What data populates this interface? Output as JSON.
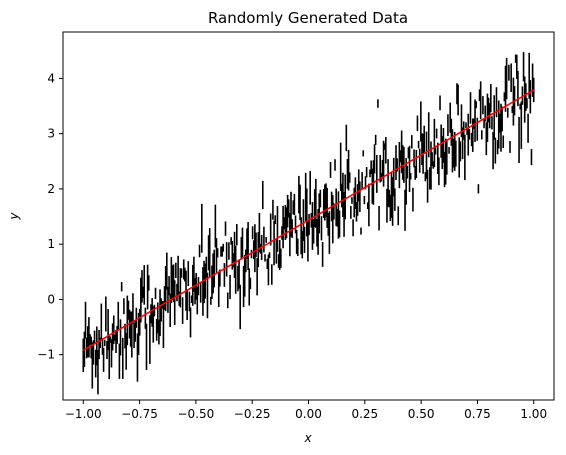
{
  "chart_data": {
    "type": "line",
    "title": "Randomly Generated Data",
    "xlabel": "x",
    "ylabel": "y",
    "xlim": [
      -1.09,
      1.09
    ],
    "ylim": [
      -1.82,
      4.84
    ],
    "x_ticks": [
      -1.0,
      -0.75,
      -0.5,
      -0.25,
      0.0,
      0.25,
      0.5,
      0.75,
      1.0
    ],
    "x_tick_labels": [
      "−1.00",
      "−0.75",
      "−0.50",
      "−0.25",
      "0.00",
      "0.25",
      "0.50",
      "0.75",
      "1.00"
    ],
    "y_ticks": [
      -1,
      0,
      1,
      2,
      3,
      4
    ],
    "y_tick_labels": [
      "−1",
      "0",
      "1",
      "2",
      "3",
      "4"
    ],
    "grid": false,
    "legend": "none",
    "series": [
      {
        "kind": "vertical-segments",
        "color": "#000000",
        "count": 400,
        "x_range": [
          -1.0,
          1.0
        ],
        "center_line": {
          "intercept": 1.45,
          "slope": 2.35
        },
        "center_scatter": 0.36,
        "segment_half_length_range": [
          0.05,
          0.45
        ]
      },
      {
        "kind": "fit-line",
        "color": "#ff0000",
        "x": [
          -1.0,
          1.0
        ],
        "y": [
          -0.92,
          3.79
        ]
      }
    ]
  }
}
